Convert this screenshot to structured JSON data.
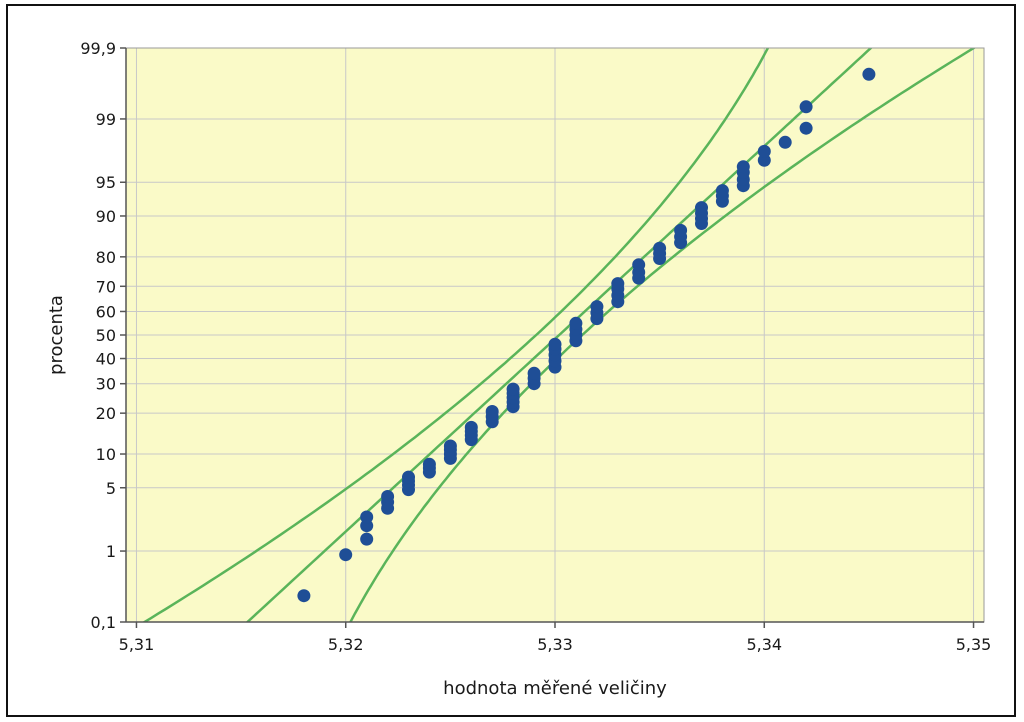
{
  "chart_data": {
    "type": "scatter",
    "title": "",
    "xlabel": "hodnota měřené veličiny",
    "ylabel": "procenta",
    "xlim": [
      5.3095,
      5.3505
    ],
    "x_ticks": [
      5.31,
      5.32,
      5.33,
      5.34,
      5.35
    ],
    "x_tick_labels": [
      "5,31",
      "5,32",
      "5,33",
      "5,34",
      "5,35"
    ],
    "y_scale": "normal-probability",
    "y_ticks": [
      0.1,
      1,
      5,
      10,
      20,
      30,
      40,
      50,
      60,
      70,
      80,
      90,
      95,
      99,
      99.9
    ],
    "y_tick_labels": [
      "0,1",
      "1",
      "5",
      "10",
      "20",
      "30",
      "40",
      "50",
      "60",
      "70",
      "80",
      "90",
      "95",
      "99",
      "99,9"
    ],
    "grid": true,
    "colors": {
      "plot_background": "#fafac8",
      "grid": "#c8c8c8",
      "points": "#1f4e96",
      "fit_lines": "#5ab45a"
    },
    "fit": {
      "mean": 5.3302,
      "sd": 0.00482
    },
    "confidence_band": {
      "half_width_center": 0.0011,
      "growth": 0.0004
    },
    "points": [
      [
        5.318,
        0.25
      ],
      [
        5.32,
        0.9
      ],
      [
        5.321,
        1.4
      ],
      [
        5.321,
        2.0
      ],
      [
        5.321,
        2.5
      ],
      [
        5.322,
        3.1
      ],
      [
        5.322,
        3.6
      ],
      [
        5.322,
        4.1
      ],
      [
        5.323,
        4.8
      ],
      [
        5.323,
        5.3
      ],
      [
        5.323,
        5.8
      ],
      [
        5.323,
        6.3
      ],
      [
        5.324,
        7.0
      ],
      [
        5.324,
        7.6
      ],
      [
        5.324,
        8.2
      ],
      [
        5.325,
        9.2
      ],
      [
        5.325,
        10.0
      ],
      [
        5.325,
        10.8
      ],
      [
        5.325,
        11.6
      ],
      [
        5.326,
        13.0
      ],
      [
        5.326,
        14.0
      ],
      [
        5.326,
        15.0
      ],
      [
        5.326,
        16.0
      ],
      [
        5.327,
        17.5
      ],
      [
        5.327,
        19.0
      ],
      [
        5.327,
        20.5
      ],
      [
        5.328,
        22.0
      ],
      [
        5.328,
        23.5
      ],
      [
        5.328,
        25.0
      ],
      [
        5.328,
        26.5
      ],
      [
        5.328,
        28.0
      ],
      [
        5.329,
        30.0
      ],
      [
        5.329,
        32.0
      ],
      [
        5.329,
        34.0
      ],
      [
        5.33,
        36.5
      ],
      [
        5.33,
        39.0
      ],
      [
        5.33,
        41.5
      ],
      [
        5.33,
        44.0
      ],
      [
        5.33,
        46.0
      ],
      [
        5.331,
        47.5
      ],
      [
        5.331,
        50.0
      ],
      [
        5.331,
        52.5
      ],
      [
        5.331,
        55.0
      ],
      [
        5.332,
        57.0
      ],
      [
        5.332,
        59.5
      ],
      [
        5.332,
        62.0
      ],
      [
        5.333,
        64.0
      ],
      [
        5.333,
        66.5
      ],
      [
        5.333,
        69.0
      ],
      [
        5.333,
        71.0
      ],
      [
        5.334,
        73.0
      ],
      [
        5.334,
        75.0
      ],
      [
        5.334,
        77.5
      ],
      [
        5.335,
        79.5
      ],
      [
        5.335,
        81.0
      ],
      [
        5.335,
        82.5
      ],
      [
        5.336,
        84.0
      ],
      [
        5.336,
        85.5
      ],
      [
        5.336,
        87.0
      ],
      [
        5.337,
        88.5
      ],
      [
        5.337,
        89.5
      ],
      [
        5.337,
        90.5
      ],
      [
        5.337,
        91.5
      ],
      [
        5.338,
        92.5
      ],
      [
        5.338,
        93.3
      ],
      [
        5.338,
        94.0
      ],
      [
        5.339,
        94.6
      ],
      [
        5.339,
        95.3
      ],
      [
        5.339,
        96.0
      ],
      [
        5.339,
        96.5
      ],
      [
        5.34,
        97.0
      ],
      [
        5.34,
        97.6
      ],
      [
        5.341,
        98.1
      ],
      [
        5.342,
        98.7
      ],
      [
        5.342,
        99.3
      ],
      [
        5.345,
        99.75
      ]
    ]
  }
}
